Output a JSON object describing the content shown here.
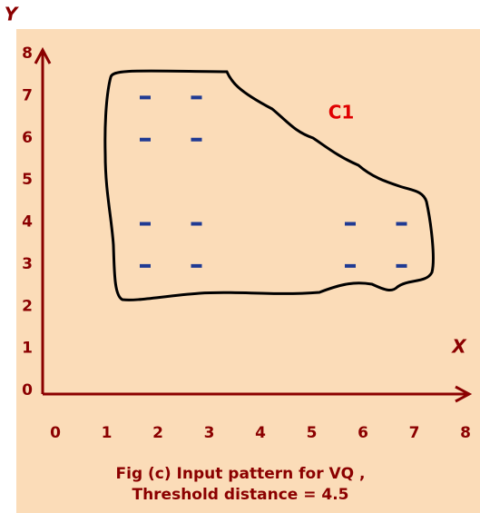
{
  "chart_data": {
    "type": "scatter",
    "x_label": "X",
    "y_label": "Y",
    "annotation": "C1",
    "caption": [
      "Fig (c) Input pattern for VQ ,",
      "Threshold distance = 4.5"
    ],
    "x": [
      2,
      3,
      2,
      3,
      2,
      3,
      2,
      3,
      6,
      7,
      6,
      7
    ],
    "y": [
      7,
      7,
      6,
      6,
      4,
      4,
      3,
      3,
      4,
      4,
      3,
      3
    ],
    "color": "#1f3a93",
    "xlim": [
      0,
      8
    ],
    "ylim": [
      0,
      8
    ],
    "xticks": [
      0,
      1,
      2,
      3,
      4,
      5,
      6,
      7,
      8
    ],
    "yticks": [
      0,
      1,
      2,
      3,
      4,
      5,
      6,
      7,
      8
    ],
    "grid": false
  }
}
